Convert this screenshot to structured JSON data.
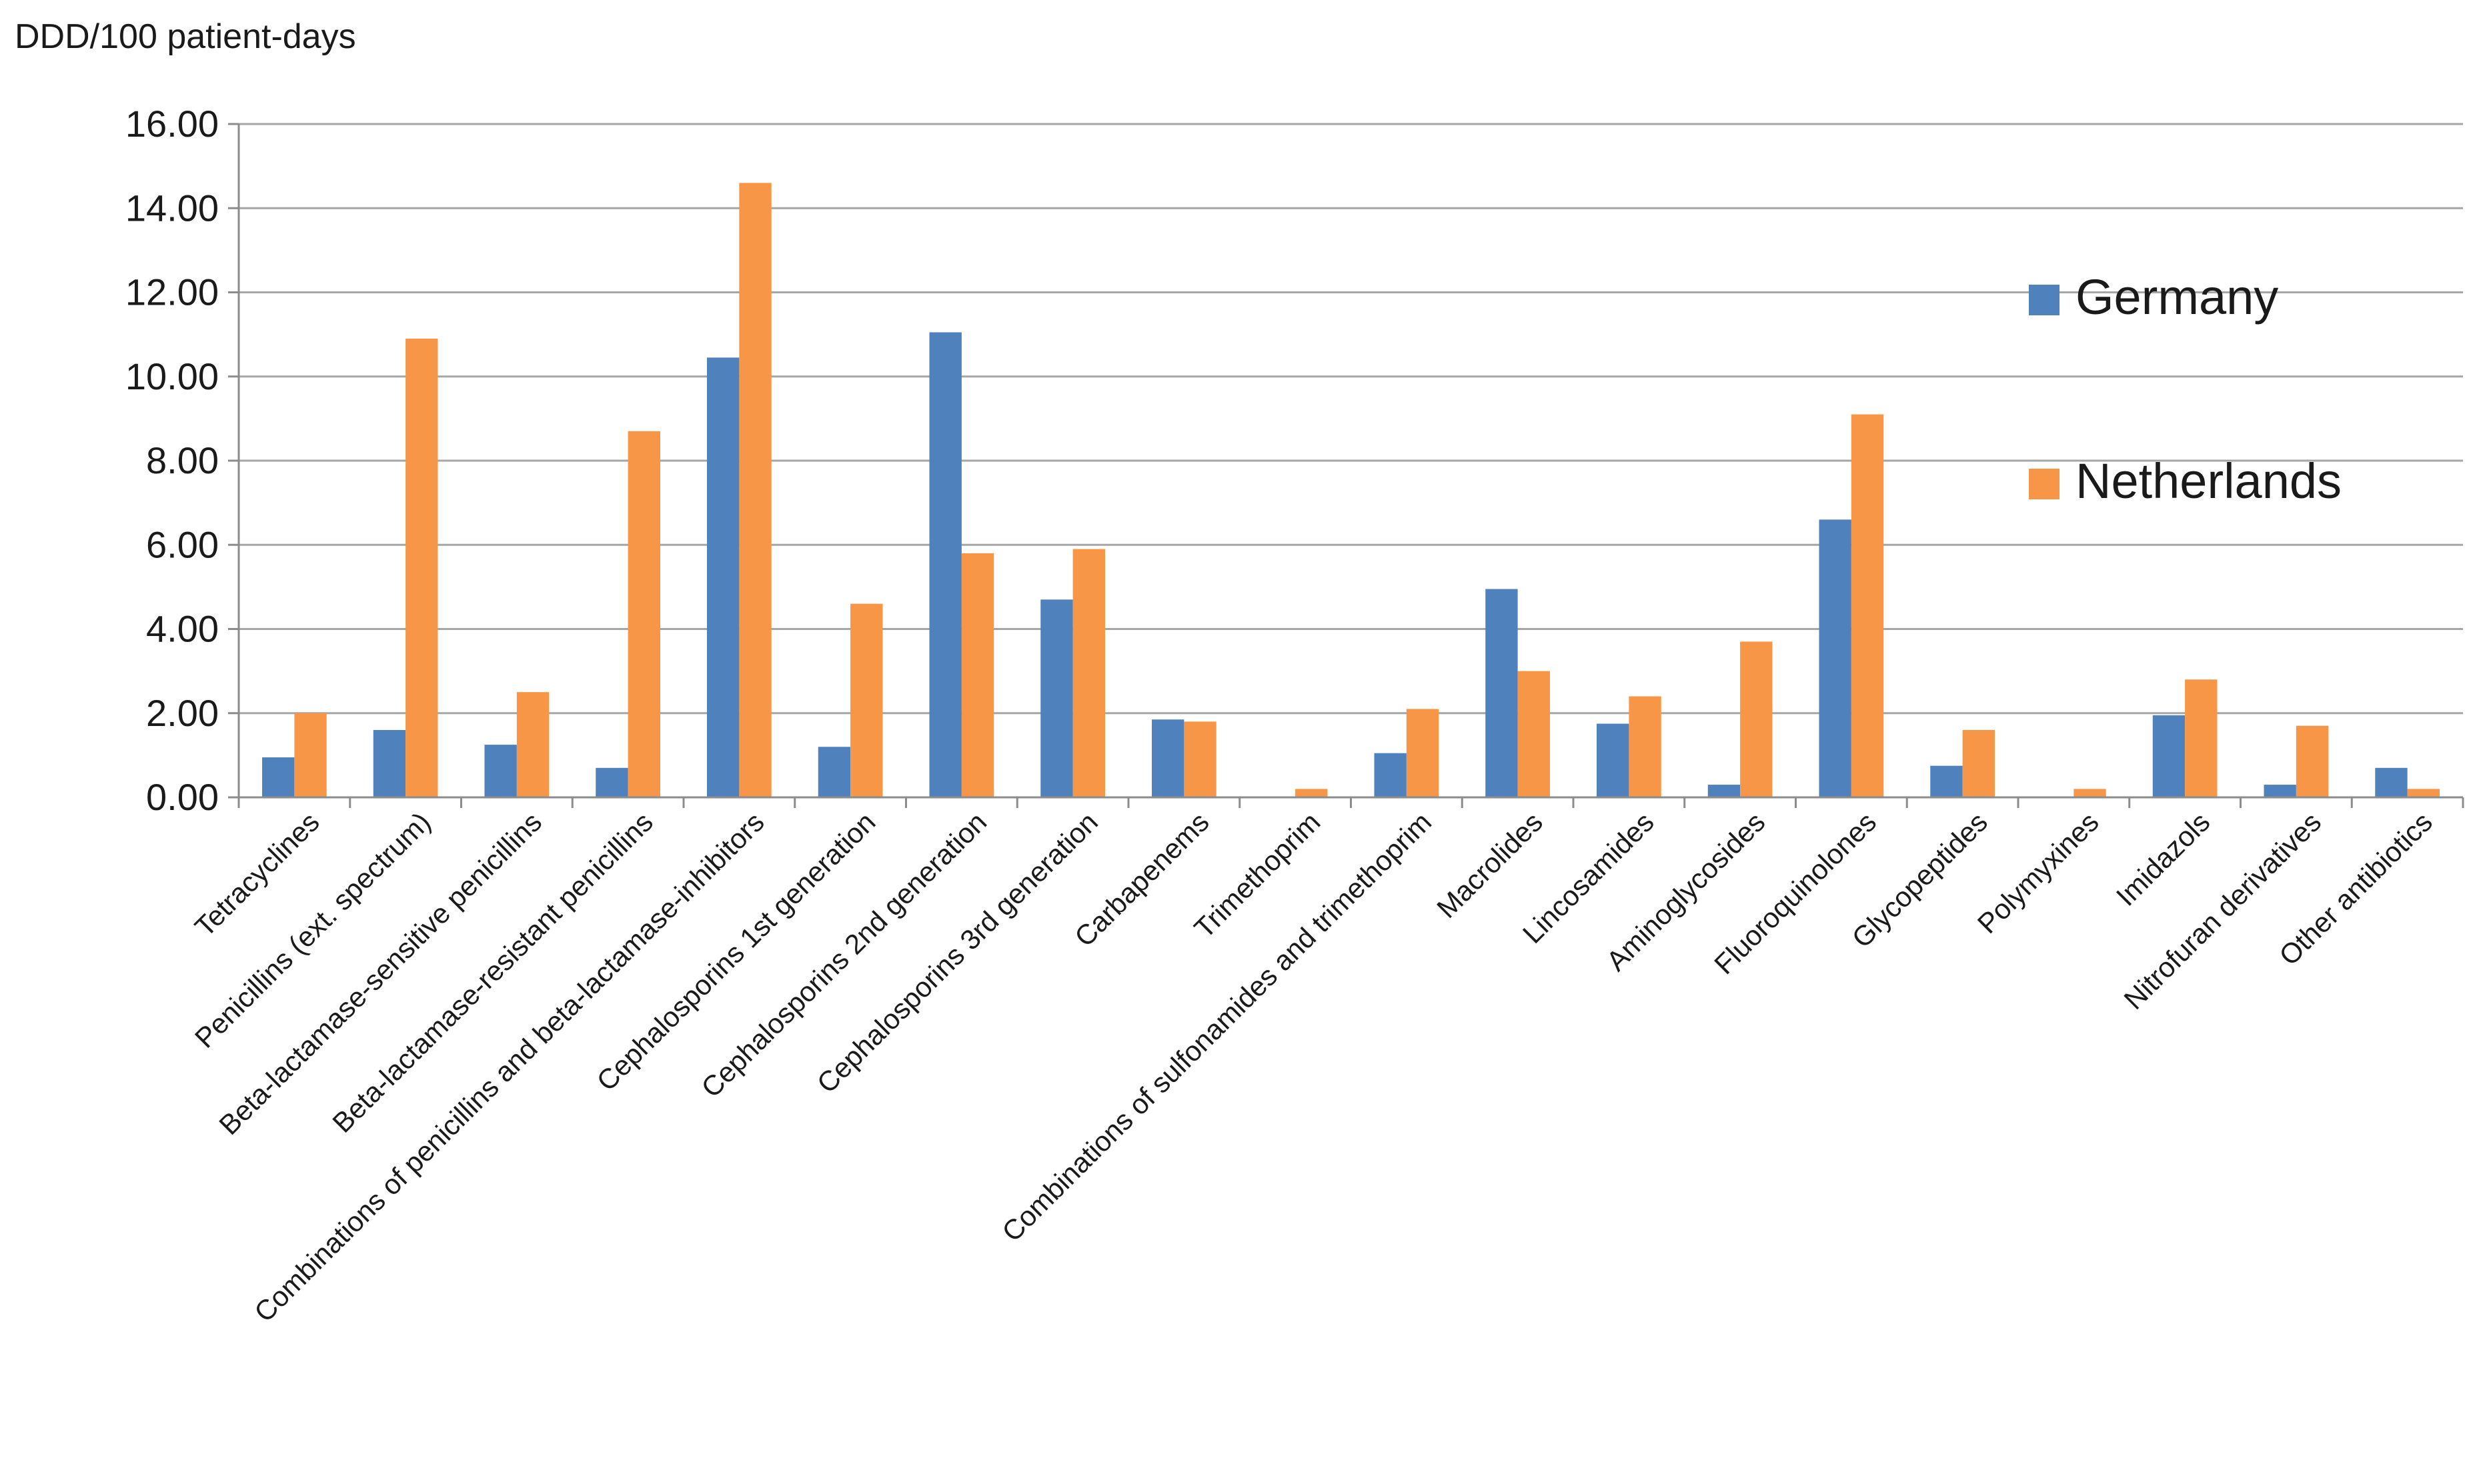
{
  "chart_data": {
    "type": "bar",
    "ylabel": "DDD/100 patient-days",
    "ylim": [
      0,
      16
    ],
    "y_ticks": [
      "0.00",
      "2.00",
      "4.00",
      "6.00",
      "8.00",
      "10.00",
      "12.00",
      "14.00",
      "16.00"
    ],
    "grid": true,
    "legend_position": "right",
    "categories": [
      "Tetracyclines",
      "Penicillins (ext. spectrum)",
      "Beta-lactamase-sensitive penicillins",
      "Beta-lactamase-resistant penicillins",
      "Combinations of penicillins and beta-lactamase-inhibitors",
      "Cephalosporins 1st generation",
      "Cephalosporins 2nd generation",
      "Cephalosporins 3rd generation",
      "Carbapenems",
      "Trimethoprim",
      "Combinations of sulfonamides and trimethoprim",
      "Macrolides",
      "Lincosamides",
      "Aminoglycosides",
      "Fluoroquinolones",
      "Glycopeptides",
      "Polymyxines",
      "Imidazols",
      "Nitrofuran derivatives",
      "Other antibiotics"
    ],
    "series": [
      {
        "name": "Germany",
        "color": "#4F81BD",
        "values": [
          0.95,
          1.6,
          1.25,
          0.7,
          10.45,
          1.2,
          11.05,
          4.7,
          1.85,
          0.0,
          1.05,
          4.95,
          1.75,
          0.3,
          6.6,
          0.75,
          0.0,
          1.95,
          0.3,
          0.7
        ]
      },
      {
        "name": "Netherlands",
        "color": "#F79646",
        "values": [
          2.0,
          10.9,
          2.5,
          8.7,
          14.6,
          4.6,
          5.8,
          5.9,
          1.8,
          0.2,
          2.1,
          3.0,
          2.4,
          3.7,
          9.1,
          1.6,
          0.2,
          2.8,
          1.7,
          0.2
        ]
      }
    ]
  }
}
